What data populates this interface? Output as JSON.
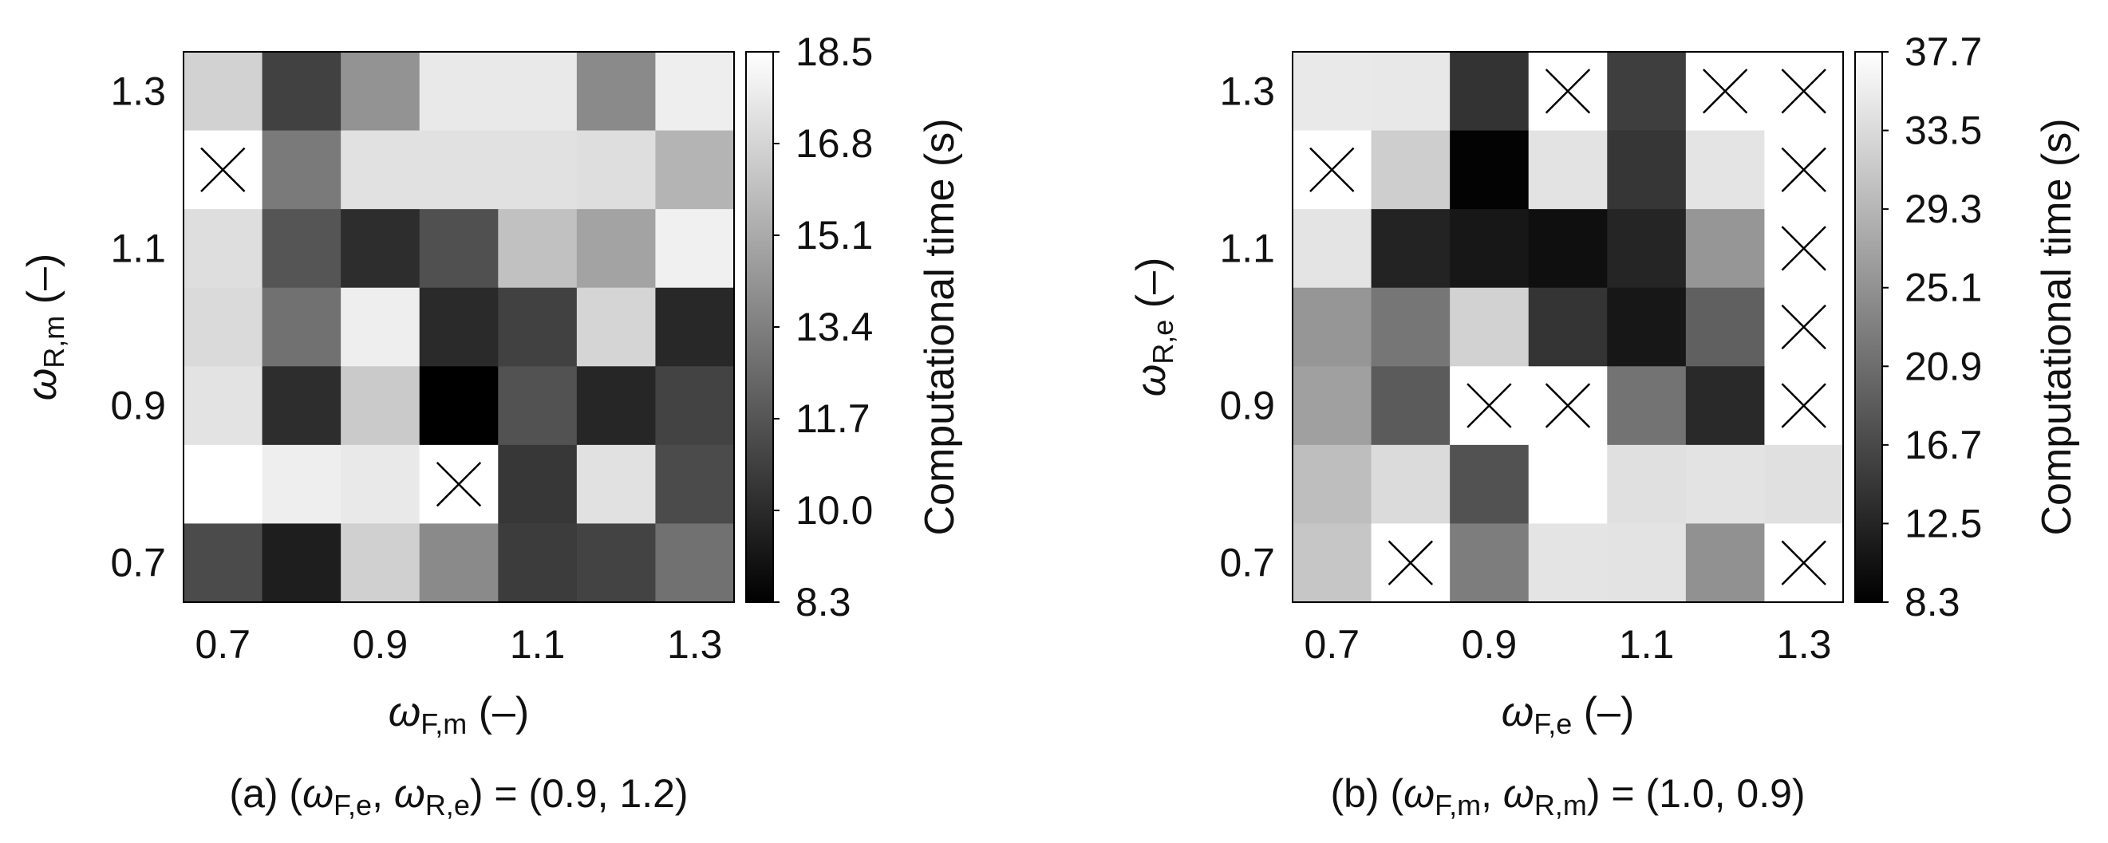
{
  "chart_data": [
    {
      "type": "heatmap",
      "x_ticks": [
        "0.7",
        "0.9",
        "1.1",
        "1.3"
      ],
      "y_ticks": [
        "1.3",
        "1.1",
        "0.9",
        "0.7"
      ],
      "x": [
        0.7,
        0.8,
        0.9,
        1.0,
        1.1,
        1.2,
        1.3
      ],
      "y": [
        1.3,
        1.2,
        1.1,
        1.0,
        0.9,
        0.8,
        0.7
      ],
      "xlabel": {
        "sym": "ω",
        "sub": "F,m",
        "unit": " (–)"
      },
      "ylabel": {
        "sym": "ω",
        "sub": "R,m",
        "unit": " (–)"
      },
      "colorbar": {
        "label": "Computational time (s)",
        "min": 8.3,
        "max": 18.5,
        "ticks": [
          "18.5",
          "16.8",
          "15.1",
          "13.4",
          "11.7",
          "10.0",
          "8.3"
        ],
        "colormap": "gray"
      },
      "values": [
        [
          16.7,
          10.9,
          14.2,
          17.6,
          17.6,
          13.8,
          17.8
        ],
        [
          null,
          13.2,
          17.3,
          17.3,
          17.3,
          17.2,
          15.5
        ],
        [
          17.2,
          11.7,
          10.1,
          11.5,
          16.0,
          14.8,
          17.9
        ],
        [
          17.0,
          12.8,
          17.8,
          10.0,
          10.9,
          16.8,
          9.9
        ],
        [
          17.4,
          10.1,
          16.4,
          8.3,
          11.6,
          9.8,
          11.0
        ],
        [
          18.5,
          17.8,
          17.6,
          null,
          10.5,
          17.3,
          11.3
        ],
        [
          11.3,
          9.5,
          16.6,
          13.8,
          10.7,
          11.0,
          12.8
        ]
      ],
      "caption": {
        "prefix": "(a) (",
        "sym1": "ω",
        "sub1": "F,e",
        "sep": ", ",
        "sym2": "ω",
        "sub2": "R,e",
        "suffix": ") = (0.9, 1.2)"
      }
    },
    {
      "type": "heatmap",
      "x_ticks": [
        "0.7",
        "0.9",
        "1.1",
        "1.3"
      ],
      "y_ticks": [
        "1.3",
        "1.1",
        "0.9",
        "0.7"
      ],
      "x": [
        0.7,
        0.8,
        0.9,
        1.0,
        1.1,
        1.2,
        1.3
      ],
      "y": [
        1.3,
        1.2,
        1.1,
        1.0,
        0.9,
        0.8,
        0.7
      ],
      "xlabel": {
        "sym": "ω",
        "sub": "F,e",
        "unit": " (–)"
      },
      "ylabel": {
        "sym": "ω",
        "sub": "R,e",
        "unit": " (–)"
      },
      "colorbar": {
        "label": "Computational time (s)",
        "min": 8.3,
        "max": 37.7,
        "ticks": [
          "37.7",
          "33.5",
          "29.3",
          "25.1",
          "20.9",
          "16.7",
          "12.5",
          "8.3"
        ],
        "colormap": "gray"
      },
      "values": [
        [
          35.2,
          35.0,
          14.2,
          null,
          15.5,
          null,
          null
        ],
        [
          null,
          32.0,
          8.6,
          34.5,
          14.5,
          34.6,
          null
        ],
        [
          34.6,
          12.3,
          11.0,
          10.0,
          12.6,
          25.6,
          null
        ],
        [
          25.6,
          21.9,
          32.5,
          14.3,
          11.0,
          19.4,
          null
        ],
        [
          26.8,
          18.8,
          null,
          null,
          21.6,
          13.0,
          null
        ],
        [
          30.2,
          33.6,
          17.8,
          37.7,
          34.1,
          34.5,
          34.1
        ],
        [
          31.1,
          null,
          22.7,
          34.6,
          34.5,
          25.0,
          null
        ]
      ],
      "caption": {
        "prefix": "(b) (",
        "sym1": "ω",
        "sub1": "F,m",
        "sep": ", ",
        "sym2": "ω",
        "sub2": "R,m",
        "suffix": ") = (1.0, 0.9)"
      }
    }
  ]
}
